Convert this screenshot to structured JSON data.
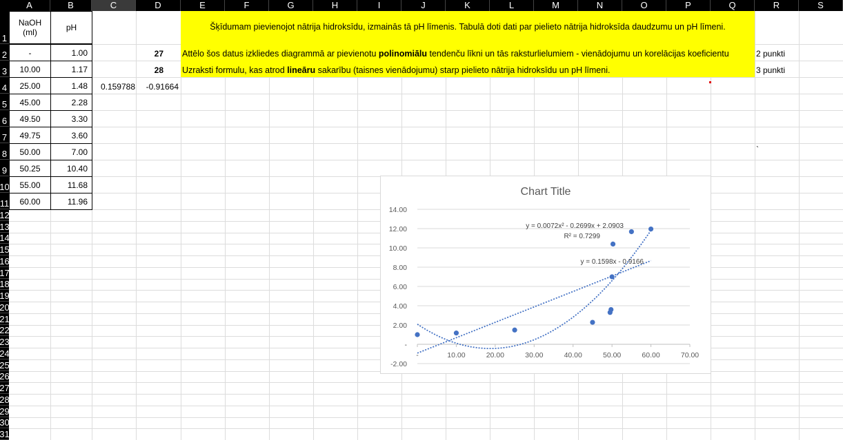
{
  "columns": [
    "A",
    "B",
    "C",
    "D",
    "E",
    "F",
    "G",
    "H",
    "I",
    "J",
    "K",
    "L",
    "M",
    "N",
    "O",
    "P",
    "Q",
    "R",
    "S"
  ],
  "rows": [
    "1",
    "2",
    "3",
    "4",
    "5",
    "6",
    "7",
    "8",
    "9",
    "10",
    "11",
    "12",
    "13",
    "14",
    "15",
    "16",
    "17",
    "18",
    "19",
    "20",
    "21",
    "22",
    "23",
    "24",
    "25",
    "26",
    "27",
    "28",
    "29",
    "30",
    "31"
  ],
  "table": {
    "header_a": "NaOH\n(ml)",
    "header_b": "pH",
    "naoh": [
      "-",
      "10.00",
      "25.00",
      "45.00",
      "49.50",
      "49.75",
      "50.00",
      "50.25",
      "55.00",
      "60.00"
    ],
    "ph": [
      "1.00",
      "1.17",
      "1.48",
      "2.28",
      "3.30",
      "3.60",
      "7.00",
      "10.40",
      "11.68",
      "11.96"
    ]
  },
  "cells": {
    "c4": "0.159788",
    "d4": "-0.91664",
    "d2": "27",
    "d3": "28",
    "r2": "2 punkti",
    "r3": "3 punkti",
    "r9": "`"
  },
  "task": {
    "intro": "Šķīdumam pievienojot nātrija hidroksīdu, izmainās tā pH līmenis. Tabulā doti dati par pielieto nātrija hidroksīda daudzumu un pH līmeni.",
    "q27_a": "Attēlo šos datus izkliedes diagrammā  ar pievienotu ",
    "q27_b": "polinomiālu",
    "q27_c": " tendenču līkni un tās raksturlielumiem - vienādojumu un korelācijas koeficientu",
    "q28_a": "Uzraksti formulu, kas atrod ",
    "q28_b": "lineāru",
    "q28_c": " sakarību (taisnes vienādojumu) starp pielieto nātrija hidroksīdu un pH līmeni."
  },
  "chart_data": {
    "type": "scatter",
    "title": "Chart Title",
    "series": [
      {
        "name": "pH",
        "x": [
          0,
          10,
          25,
          45,
          49.5,
          49.75,
          50,
          50.25,
          55,
          60
        ],
        "y": [
          1.0,
          1.17,
          1.48,
          2.28,
          3.3,
          3.6,
          7.0,
          10.4,
          11.68,
          11.96
        ]
      }
    ],
    "trendlines": [
      {
        "kind": "polynomial",
        "order": 2,
        "coef": [
          0.0072,
          -0.2699,
          2.0903
        ],
        "equation": "y = 0.0072x² - 0.2699x + 2.0903",
        "r2": "R² = 0.7299"
      },
      {
        "kind": "linear",
        "coef": [
          0.1598,
          -0.9166
        ],
        "equation": "y = 0.1598x - 0.9166"
      }
    ],
    "xlim": [
      0,
      70
    ],
    "ylim": [
      -2,
      14
    ],
    "xticks": [
      "-",
      "10.00",
      "20.00",
      "30.00",
      "40.00",
      "50.00",
      "60.00",
      "70.00"
    ],
    "yticks": [
      "-2.00",
      "-",
      "2.00",
      "4.00",
      "6.00",
      "8.00",
      "10.00",
      "12.00",
      "14.00"
    ],
    "colors": {
      "marker": "#4472c4",
      "grid": "#d9d9d9"
    }
  }
}
